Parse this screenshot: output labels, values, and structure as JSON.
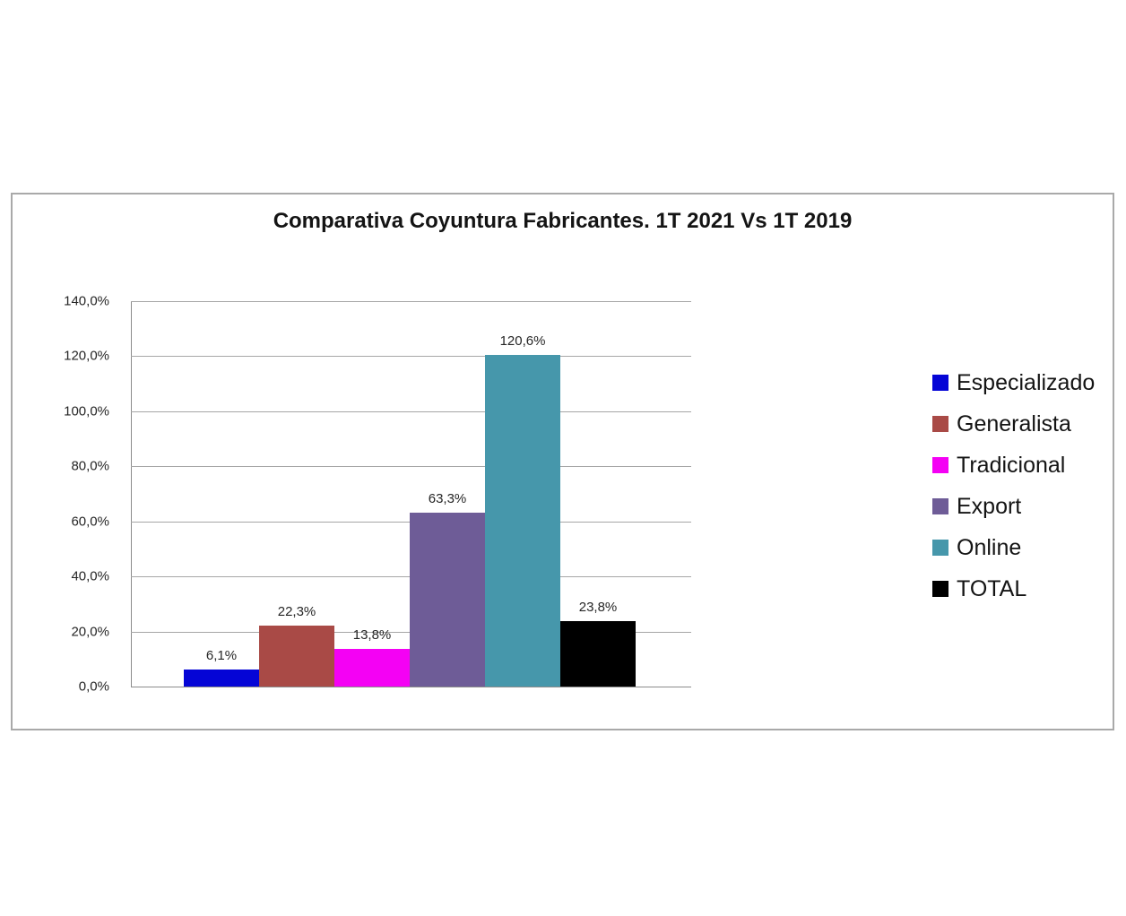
{
  "chart_data": {
    "type": "bar",
    "title": "Comparativa Coyuntura Fabricantes. 1T 2021 Vs 1T 2019",
    "categories": [
      "Especializado",
      "Generalista",
      "Tradicional",
      "Export",
      "Online",
      "TOTAL"
    ],
    "values": [
      6.1,
      22.3,
      13.8,
      63.3,
      120.6,
      23.8
    ],
    "value_labels": [
      "6,1%",
      "22,3%",
      "13,8%",
      "63,3%",
      "120,6%",
      "23,8%"
    ],
    "colors": [
      "#0505d6",
      "#a94a46",
      "#f401f4",
      "#6e5c97",
      "#4697ab",
      "#000000"
    ],
    "xlabel": "",
    "ylabel": "",
    "ylim": [
      0,
      140
    ],
    "ytick_interval": 20,
    "ytick_labels": [
      "0,0%",
      "20,0%",
      "40,0%",
      "60,0%",
      "80,0%",
      "100,0%",
      "120,0%",
      "140,0%"
    ],
    "grid": true,
    "legend_position": "right",
    "legend_entries": [
      {
        "label": "Especializado",
        "color": "#0505d6"
      },
      {
        "label": "Generalista",
        "color": "#a94a46"
      },
      {
        "label": "Tradicional",
        "color": "#f401f4"
      },
      {
        "label": "Export",
        "color": "#6e5c97"
      },
      {
        "label": "Online",
        "color": "#4697ab"
      },
      {
        "label": "TOTAL",
        "color": "#000000"
      }
    ]
  },
  "frame": {
    "border_color": "#a9a9a9",
    "background": "#ffffff"
  }
}
